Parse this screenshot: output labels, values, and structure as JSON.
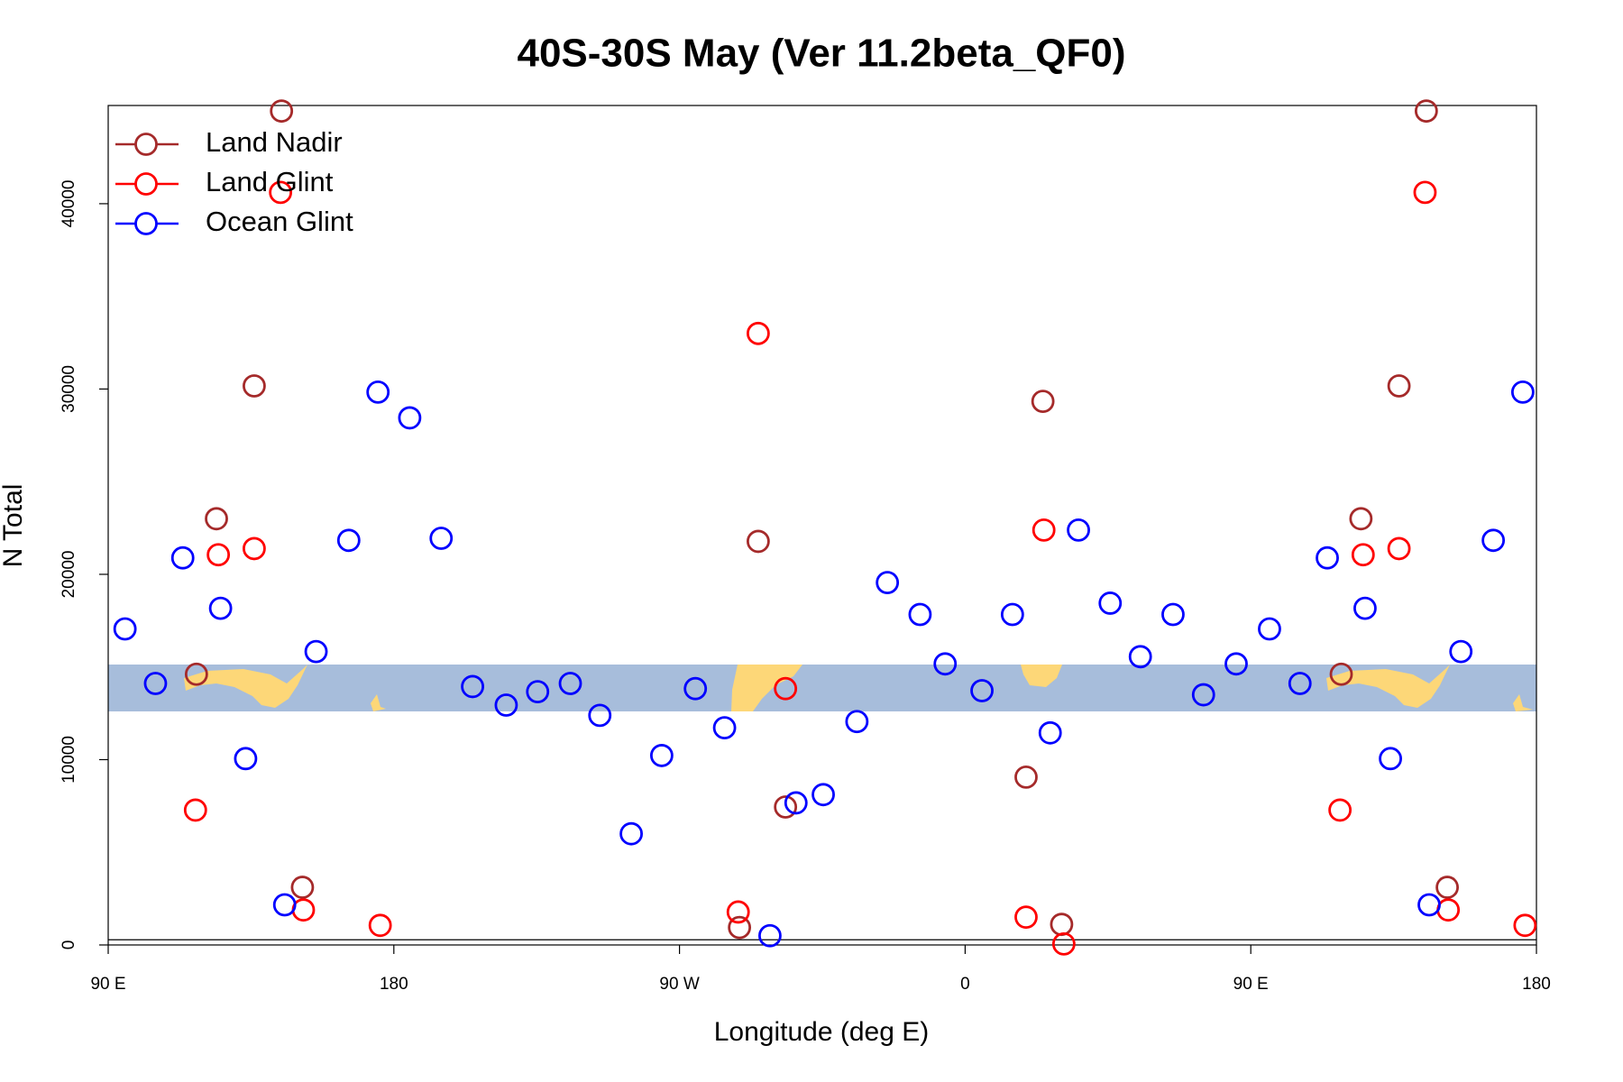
{
  "chart_data": {
    "type": "scatter",
    "title": "40S-30S May (Ver 11.2beta_QF0)",
    "x_label": "Longitude (deg E)",
    "y_label": "N Total",
    "xlim": [
      90,
      540
    ],
    "xticks": [
      {
        "value": 90,
        "label": "90 E"
      },
      {
        "value": 180,
        "label": "180"
      },
      {
        "value": 270,
        "label": "90 W"
      },
      {
        "value": 360,
        "label": "0"
      },
      {
        "value": 450,
        "label": "90 E"
      },
      {
        "value": 540,
        "label": "180"
      }
    ],
    "ylim": [
      0,
      45300
    ],
    "yticks": [
      0,
      10000,
      20000,
      30000,
      40000
    ],
    "hline": 280,
    "legend": "topleft",
    "series": [
      {
        "name": "Land Nadir",
        "color": "#a52a2a",
        "x": [
          117.8,
          124.1,
          136.0,
          144.6,
          151.2,
          288.9,
          294.8,
          303.4,
          379.2,
          384.5,
          390.4,
          478.5,
          484.7,
          496.7,
          505.3,
          511.9
        ],
        "values": [
          14611,
          23000,
          30167,
          45000,
          3111,
          944,
          21778,
          7444,
          9056,
          29333,
          1111,
          14611,
          23000,
          30167,
          45000,
          3111
        ]
      },
      {
        "name": "Land Glint",
        "color": "#ff0000",
        "x": [
          117.5,
          124.7,
          136.0,
          144.3,
          151.5,
          175.7,
          288.5,
          294.8,
          303.4,
          379.2,
          384.8,
          391.1,
          478.1,
          485.4,
          496.7,
          504.9,
          512.2,
          536.4
        ],
        "values": [
          7278,
          21056,
          21389,
          40611,
          1889,
          1056,
          1778,
          33000,
          13833,
          1500,
          22389,
          56,
          7278,
          21056,
          21389,
          40611,
          1889,
          1056
        ]
      },
      {
        "name": "Ocean Glint",
        "color": "#0000ff",
        "x": [
          95.3,
          104.9,
          113.5,
          125.4,
          133.3,
          145.6,
          155.5,
          165.8,
          175.0,
          185.0,
          194.9,
          204.8,
          215.4,
          225.3,
          235.6,
          244.9,
          254.8,
          264.4,
          275.0,
          284.2,
          298.5,
          306.7,
          315.3,
          325.9,
          335.5,
          345.8,
          353.7,
          365.3,
          374.9,
          386.8,
          395.7,
          405.7,
          415.2,
          425.5,
          435.1,
          445.4,
          455.9,
          465.5,
          474.1,
          486.0,
          494.0,
          506.2,
          516.2,
          526.4,
          535.7
        ],
        "values": [
          17056,
          14111,
          20889,
          18167,
          10056,
          2167,
          15833,
          21833,
          29833,
          28444,
          21944,
          13944,
          12944,
          13667,
          14111,
          12389,
          6000,
          10222,
          13833,
          11722,
          500,
          7667,
          8111,
          12056,
          19556,
          17833,
          15167,
          13722,
          17833,
          11444,
          22389,
          18444,
          15556,
          17833,
          13500,
          15167,
          17056,
          14111,
          20889,
          18167,
          10056,
          2167,
          15833,
          21833,
          29833
        ]
      }
    ]
  }
}
